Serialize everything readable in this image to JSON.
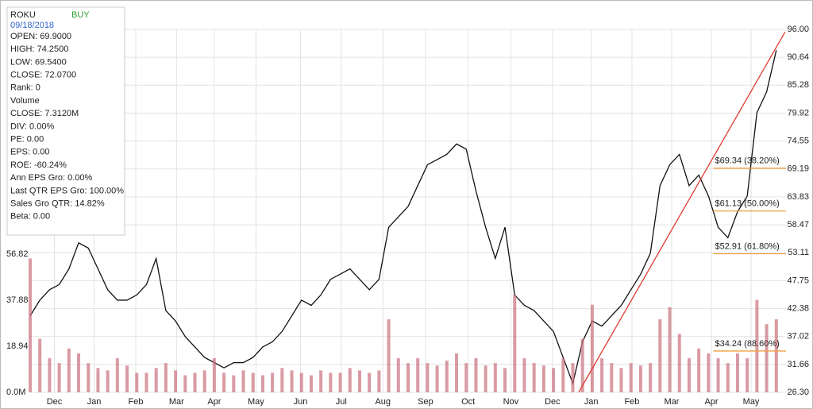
{
  "chart_data": {
    "type": "line",
    "ticker": "ROKU",
    "signal": "BUY",
    "date": "09/18/2018",
    "info": [
      "OPEN: 69.9000",
      "HIGH: 74.2500",
      "LOW: 69.5400",
      "CLOSE: 72.0700",
      "Rank: 0",
      "Volume",
      "CLOSE: 7.3120M",
      "DIV: 0.00%",
      "PE: 0.00",
      "EPS: 0.00",
      "ROE: -60.24%",
      "Ann EPS Gro: 0.00%",
      "Last QTR EPS Gro: 100.00%",
      "Sales Gro QTR: 14.82%",
      "Beta: 0.00"
    ],
    "xlim": [
      0,
      78
    ],
    "xticks": [
      {
        "value": 2.5,
        "label": "Dec"
      },
      {
        "value": 6.6,
        "label": "Jan"
      },
      {
        "value": 10.9,
        "label": "Feb"
      },
      {
        "value": 15.1,
        "label": "Mar"
      },
      {
        "value": 19.0,
        "label": "Apr"
      },
      {
        "value": 23.3,
        "label": "May"
      },
      {
        "value": 27.9,
        "label": "Jun"
      },
      {
        "value": 32.1,
        "label": "Jul"
      },
      {
        "value": 36.4,
        "label": "Aug"
      },
      {
        "value": 40.8,
        "label": "Sep"
      },
      {
        "value": 45.2,
        "label": "Oct"
      },
      {
        "value": 49.6,
        "label": "Nov"
      },
      {
        "value": 53.9,
        "label": "Dec"
      },
      {
        "value": 57.9,
        "label": "Jan"
      },
      {
        "value": 62.1,
        "label": "Feb"
      },
      {
        "value": 66.2,
        "label": "Mar"
      },
      {
        "value": 70.3,
        "label": "Apr"
      },
      {
        "value": 74.4,
        "label": "May"
      }
    ],
    "ylim": [
      26.3,
      96
    ],
    "yticks": [
      {
        "value": 96,
        "label": "96.00"
      },
      90.64,
      85.28,
      79.92,
      74.55,
      69.19,
      63.83,
      58.47,
      53.11,
      47.75,
      42.38,
      37.02,
      31.66,
      {
        "value": 26.3,
        "label": "26.30"
      }
    ],
    "y2lim": [
      0,
      149.2
    ],
    "y2ticks": [
      {
        "value": 0,
        "label": "0.0M"
      },
      18.94,
      37.88,
      56.82
    ],
    "series": [
      {
        "name": "ROKU",
        "color": "#111111",
        "x": [
          0,
          1,
          2,
          3,
          4,
          5,
          6,
          7,
          8,
          9,
          10,
          11,
          12,
          13,
          14,
          15,
          16,
          17,
          18,
          19,
          20,
          21,
          22,
          23,
          24,
          25,
          26,
          27,
          28,
          29,
          30,
          31,
          32,
          33,
          34,
          35,
          36,
          37,
          38,
          39,
          40,
          41,
          42,
          43,
          44,
          45,
          46,
          47,
          48,
          49,
          50,
          51,
          52,
          53,
          54,
          55,
          56,
          57,
          58,
          59,
          60,
          61,
          62,
          63,
          64,
          65,
          66,
          67,
          68,
          69,
          70,
          71,
          72,
          73,
          74,
          75,
          76,
          77
        ],
        "values": [
          41,
          44,
          46,
          47,
          50,
          55,
          54,
          50,
          46,
          44,
          44,
          45,
          47,
          52,
          42,
          40,
          37,
          35,
          33,
          32,
          31,
          32,
          32,
          33,
          35,
          36,
          38,
          41,
          44,
          43,
          45,
          48,
          49,
          50,
          48,
          46,
          48,
          58,
          60,
          62,
          66,
          70,
          71,
          72,
          74,
          73,
          65,
          58,
          52,
          58,
          45,
          43,
          42,
          40,
          38,
          33,
          28,
          36,
          40,
          39,
          41,
          43,
          46,
          49,
          53,
          66,
          70,
          72,
          66,
          68,
          64,
          58,
          56,
          61,
          64,
          80,
          84,
          92
        ]
      },
      {
        "name": "Volume",
        "color": "#c9707c",
        "axis": "y2",
        "x": [
          0,
          1,
          2,
          3,
          4,
          5,
          6,
          7,
          8,
          9,
          10,
          11,
          12,
          13,
          14,
          15,
          16,
          17,
          18,
          19,
          20,
          21,
          22,
          23,
          24,
          25,
          26,
          27,
          28,
          29,
          30,
          31,
          32,
          33,
          34,
          35,
          36,
          37,
          38,
          39,
          40,
          41,
          42,
          43,
          44,
          45,
          46,
          47,
          48,
          49,
          50,
          51,
          52,
          53,
          54,
          55,
          56,
          57,
          58,
          59,
          60,
          61,
          62,
          63,
          64,
          65,
          66,
          67,
          68,
          69,
          70,
          71,
          72,
          73,
          74,
          75,
          76,
          77
        ],
        "values": [
          55,
          22,
          14,
          12,
          18,
          16,
          12,
          10,
          9,
          14,
          11,
          8,
          8,
          10,
          12,
          9,
          7,
          8,
          9,
          14,
          8,
          7,
          9,
          8,
          7,
          8,
          10,
          9,
          8,
          7,
          9,
          8,
          8,
          10,
          9,
          8,
          9,
          30,
          14,
          12,
          14,
          12,
          11,
          13,
          16,
          12,
          14,
          11,
          12,
          10,
          40,
          14,
          12,
          11,
          10,
          14,
          12,
          22,
          36,
          14,
          12,
          10,
          12,
          11,
          12,
          30,
          35,
          24,
          14,
          18,
          16,
          14,
          12,
          16,
          14,
          38,
          28,
          30
        ]
      }
    ],
    "trendline": {
      "color": "#e03c31",
      "x": [
        56.6,
        77.9
      ],
      "y": [
        26.3,
        95.5
      ]
    },
    "fib_lines": {
      "color": "#f0a040",
      "x": 70.5,
      "levels": [
        {
          "value": 69.34,
          "label": "$69.34 (38.20%)"
        },
        {
          "value": 61.13,
          "label": "$61.13 (50.00%)"
        },
        {
          "value": 52.91,
          "label": "$52.91 (61.80%)"
        },
        {
          "value": 34.24,
          "label": "$34.24 (88.60%)"
        }
      ]
    }
  }
}
